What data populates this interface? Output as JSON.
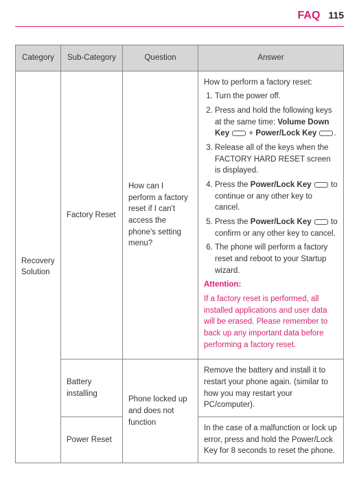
{
  "header": {
    "title": "FAQ",
    "page_number": "115"
  },
  "colors": {
    "accent": "#d81f70",
    "header_bg": "#d6d6d6",
    "border": "#888888",
    "text": "#333333"
  },
  "table": {
    "columns": [
      "Category",
      "Sub-Category",
      "Question",
      "Answer"
    ],
    "category": "Recovery Solution",
    "rows": [
      {
        "sub_category": "Factory Reset",
        "question": "How can I perform a factory reset if I can't access the phone's setting menu?",
        "answer": {
          "intro": "How to perform a factory reset:",
          "steps": {
            "s1": "Turn the power off.",
            "s2a": "Press and hold the following keys at the same time: ",
            "s2_key1": "Volume Down Key",
            "s2_plus": " + ",
            "s2_key2": "Power/Lock Key",
            "s2_end": ".",
            "s3": "Release all of the keys when the FACTORY HARD RESET screen is displayed.",
            "s4a": "Press the ",
            "s4_key": "Power/Lock Key",
            "s4b": " to continue or any other key to cancel.",
            "s5a": "Press the ",
            "s5_key": "Power/Lock Key",
            "s5b": " to confirm or any other key to cancel.",
            "s6": "The phone will perform a factory reset and reboot to your Startup wizard."
          },
          "attention_title": "Attention:",
          "attention_text": "If a factory reset is performed, all installed applications and user data will be erased. Please remember to back up any important data before performing a factory reset."
        }
      },
      {
        "sub_category": "Battery installing",
        "question": "Phone locked up and does not function",
        "answer_text": "Remove the battery and install it to restart your phone again. (similar to how you may restart your PC/computer)."
      },
      {
        "sub_category": "Power Reset",
        "answer_text": "In the case of a malfunction or lock up error, press and hold the Power/Lock Key for 8 seconds to reset the phone."
      }
    ]
  }
}
